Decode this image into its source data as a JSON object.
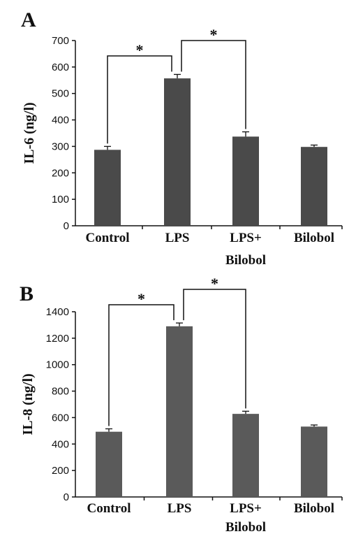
{
  "chart_data": [
    {
      "panel_label": "A",
      "type": "bar",
      "ylabel": "IL-6 (ng/l)",
      "ylim": [
        0,
        700
      ],
      "yticks": [
        0,
        100,
        200,
        300,
        400,
        500,
        600,
        700
      ],
      "categories": [
        {
          "label": "Control"
        },
        {
          "label": "LPS"
        },
        {
          "label": "LPS+",
          "label2": "Bilobol"
        },
        {
          "label": "Bilobol"
        }
      ],
      "values": [
        287,
        557,
        337,
        298
      ],
      "errors": [
        13,
        15,
        18,
        7
      ],
      "bar_color": "#4a4a4a",
      "significance": [
        {
          "from": 0,
          "to": 1,
          "label": "*"
        },
        {
          "from": 1,
          "to": 2,
          "label": "*"
        }
      ]
    },
    {
      "panel_label": "B",
      "type": "bar",
      "ylabel": "IL-8 (ng/l)",
      "ylim": [
        0,
        1400
      ],
      "yticks": [
        0,
        200,
        400,
        600,
        800,
        1000,
        1200,
        1400
      ],
      "categories": [
        {
          "label": "Control"
        },
        {
          "label": "LPS"
        },
        {
          "label": "LPS+",
          "label2": "Bilobol"
        },
        {
          "label": "Bilobol"
        }
      ],
      "values": [
        493,
        1290,
        628,
        532
      ],
      "errors": [
        22,
        25,
        20,
        12
      ],
      "bar_color": "#5a5a5a",
      "significance": [
        {
          "from": 0,
          "to": 1,
          "label": "*"
        },
        {
          "from": 1,
          "to": 2,
          "label": "*"
        }
      ]
    }
  ]
}
